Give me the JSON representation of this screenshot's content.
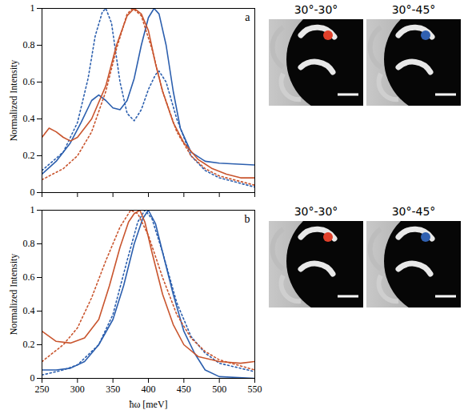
{
  "chart_data": [
    {
      "type": "line",
      "title": "a",
      "ylabel": "Normalized Intensity",
      "xlim": [
        250,
        550
      ],
      "xticks": [
        250,
        300,
        350,
        400,
        450,
        500,
        550
      ],
      "ylim": [
        0,
        1
      ],
      "yticks": [
        0,
        0.2,
        0.4,
        0.6,
        0.8,
        1
      ],
      "grid": false,
      "tick_labels": "y",
      "annotations": [
        {
          "text": "30°-30°",
          "color": "#e0402a"
        },
        {
          "text": "30°-45°",
          "color": "#3060b0"
        }
      ],
      "series": [
        {
          "color": "#2c5fae",
          "line_style": "solid",
          "x": [
            250,
            270,
            290,
            305,
            320,
            330,
            340,
            350,
            360,
            370,
            380,
            390,
            400,
            408,
            415,
            425,
            435,
            445,
            460,
            480,
            500,
            550
          ],
          "values": [
            0.1,
            0.17,
            0.27,
            0.38,
            0.5,
            0.53,
            0.5,
            0.46,
            0.45,
            0.5,
            0.62,
            0.8,
            0.95,
            1.0,
            0.97,
            0.8,
            0.55,
            0.35,
            0.22,
            0.17,
            0.16,
            0.15
          ]
        },
        {
          "color": "#2c5fae",
          "line_style": "dotted",
          "x": [
            250,
            280,
            300,
            315,
            325,
            335,
            340,
            348,
            360,
            370,
            380,
            390,
            400,
            410,
            415,
            425,
            440,
            460,
            480,
            500,
            550
          ],
          "values": [
            0.12,
            0.22,
            0.38,
            0.62,
            0.85,
            0.98,
            1.0,
            0.92,
            0.6,
            0.43,
            0.39,
            0.45,
            0.56,
            0.64,
            0.66,
            0.6,
            0.4,
            0.2,
            0.12,
            0.08,
            0.03
          ]
        },
        {
          "color": "#c9552e",
          "line_style": "solid",
          "x": [
            250,
            260,
            270,
            280,
            290,
            300,
            320,
            340,
            355,
            370,
            380,
            390,
            400,
            410,
            420,
            435,
            450,
            470,
            490,
            510,
            530,
            550
          ],
          "values": [
            0.3,
            0.35,
            0.33,
            0.3,
            0.28,
            0.3,
            0.4,
            0.58,
            0.8,
            0.96,
            1.0,
            0.97,
            0.88,
            0.7,
            0.55,
            0.38,
            0.27,
            0.18,
            0.13,
            0.1,
            0.08,
            0.08
          ]
        },
        {
          "color": "#c9552e",
          "line_style": "dotted",
          "x": [
            250,
            280,
            300,
            320,
            340,
            355,
            370,
            378,
            390,
            405,
            420,
            440,
            460,
            480,
            500,
            550
          ],
          "values": [
            0.07,
            0.13,
            0.2,
            0.33,
            0.55,
            0.78,
            0.97,
            1.0,
            0.96,
            0.78,
            0.55,
            0.33,
            0.2,
            0.13,
            0.09,
            0.04
          ]
        }
      ]
    },
    {
      "type": "line",
      "title": "b",
      "xlabel": "ħω [meV]",
      "ylabel": "Normalized Intensity",
      "xlim": [
        250,
        550
      ],
      "xticks": [
        250,
        300,
        350,
        400,
        450,
        500,
        550
      ],
      "ylim": [
        0,
        1
      ],
      "yticks": [
        0,
        0.2,
        0.4,
        0.6,
        0.8,
        1
      ],
      "grid": false,
      "annotations": [
        {
          "text": "30°-30°",
          "color": "#e0402a"
        },
        {
          "text": "30°-45°",
          "color": "#3060b0"
        }
      ],
      "series": [
        {
          "color": "#2c5fae",
          "line_style": "solid",
          "x": [
            250,
            270,
            290,
            310,
            330,
            350,
            365,
            380,
            392,
            400,
            410,
            420,
            435,
            450,
            465,
            480,
            500,
            550
          ],
          "values": [
            0.05,
            0.05,
            0.06,
            0.1,
            0.2,
            0.35,
            0.55,
            0.8,
            0.95,
            1.0,
            0.92,
            0.75,
            0.5,
            0.28,
            0.15,
            0.05,
            0.01,
            0.0
          ]
        },
        {
          "color": "#2c5fae",
          "line_style": "dotted",
          "x": [
            250,
            280,
            300,
            330,
            350,
            370,
            385,
            395,
            405,
            420,
            440,
            460,
            480,
            500,
            550
          ],
          "values": [
            0.02,
            0.05,
            0.08,
            0.2,
            0.38,
            0.7,
            0.93,
            1.0,
            0.95,
            0.75,
            0.45,
            0.25,
            0.15,
            0.09,
            0.04
          ]
        },
        {
          "color": "#c9552e",
          "line_style": "solid",
          "x": [
            250,
            270,
            290,
            310,
            330,
            345,
            360,
            372,
            380,
            388,
            395,
            405,
            420,
            435,
            450,
            470,
            500,
            530,
            550
          ],
          "values": [
            0.28,
            0.22,
            0.21,
            0.24,
            0.35,
            0.55,
            0.78,
            0.93,
            0.98,
            1.0,
            0.93,
            0.75,
            0.5,
            0.32,
            0.2,
            0.13,
            0.1,
            0.09,
            0.1
          ]
        },
        {
          "color": "#c9552e",
          "line_style": "dotted",
          "x": [
            250,
            280,
            300,
            320,
            340,
            360,
            375,
            385,
            400,
            420,
            440,
            460,
            480,
            500,
            550
          ],
          "values": [
            0.1,
            0.2,
            0.3,
            0.48,
            0.7,
            0.9,
            1.0,
            0.98,
            0.85,
            0.6,
            0.38,
            0.24,
            0.16,
            0.11,
            0.05
          ]
        }
      ]
    }
  ]
}
